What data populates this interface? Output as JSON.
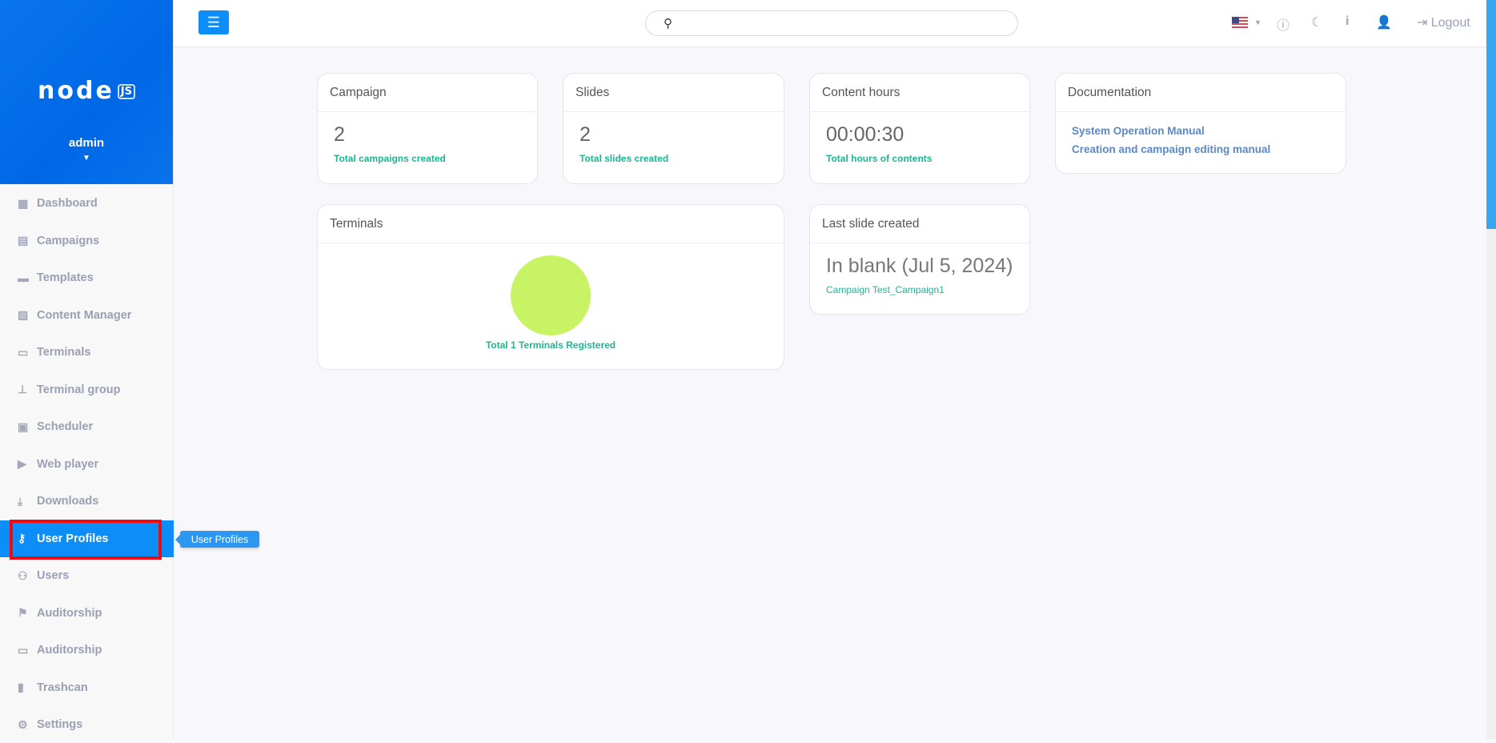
{
  "sidebar": {
    "logo": "node",
    "logo_badge": "JS",
    "username": "admin",
    "items": [
      {
        "label": "Dashboard",
        "icon": "dashboard-icon"
      },
      {
        "label": "Campaigns",
        "icon": "campaigns-icon"
      },
      {
        "label": "Templates",
        "icon": "templates-icon"
      },
      {
        "label": "Content Manager",
        "icon": "images-icon"
      },
      {
        "label": "Terminals",
        "icon": "monitor-icon"
      },
      {
        "label": "Terminal group",
        "icon": "sitemap-icon"
      },
      {
        "label": "Scheduler",
        "icon": "calendar-icon"
      },
      {
        "label": "Web player",
        "icon": "play-icon"
      },
      {
        "label": "Downloads",
        "icon": "download-icon"
      },
      {
        "label": "User Profiles",
        "icon": "key-icon",
        "active": true
      },
      {
        "label": "Users",
        "icon": "users-icon"
      },
      {
        "label": "Auditorship",
        "icon": "flag-icon"
      },
      {
        "label": "Auditorship",
        "icon": "card-icon"
      },
      {
        "label": "Trashcan",
        "icon": "trash-icon"
      },
      {
        "label": "Settings",
        "icon": "gear-icon"
      }
    ]
  },
  "tooltip": "User Profiles",
  "topbar": {
    "search_placeholder": "",
    "logout": "Logout"
  },
  "cards": {
    "campaign": {
      "title": "Campaign",
      "value": "2",
      "sub": "Total campaigns created"
    },
    "slides": {
      "title": "Slides",
      "value": "2",
      "sub": "Total slides created"
    },
    "hours": {
      "title": "Content hours",
      "value": "00:00:30",
      "sub": "Total hours of contents"
    },
    "docs": {
      "title": "Documentation",
      "links": [
        "System Operation Manual",
        "Creation and campaign editing manual"
      ]
    },
    "terminals": {
      "title": "Terminals",
      "sub": "Total 1 Terminals Registered",
      "pie_color": "#c8f364"
    },
    "last": {
      "title": "Last slide created",
      "value": "In blank (Jul 5, 2024)",
      "sub": "Campaign Test_Campaign1"
    }
  }
}
